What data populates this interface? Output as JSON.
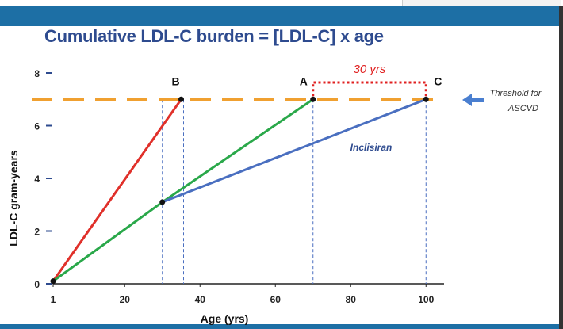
{
  "title": "Cumulative LDL-C burden = [LDL-C] x age",
  "chart_data": {
    "type": "line",
    "title": "Cumulative LDL-C burden = [LDL-C] x age",
    "xlabel": "Age (yrs)",
    "ylabel": "LDL-C gram-years",
    "xlim": [
      1,
      110
    ],
    "ylim": [
      0,
      8
    ],
    "xticks": [
      "1",
      "20",
      "40",
      "60",
      "80",
      "100"
    ],
    "xtick_values": [
      1,
      20,
      40,
      60,
      80,
      100
    ],
    "yticks": [
      "0",
      "2",
      "4",
      "6",
      "8"
    ],
    "ytick_values": [
      0,
      2,
      4,
      6,
      8
    ],
    "threshold": {
      "y": 7,
      "label_line1": "Threshold for",
      "label_line2": "ASCVD",
      "color": "#f0a030"
    },
    "series": [
      {
        "name": "red",
        "color": "#e0302a",
        "points": [
          [
            1,
            0.1
          ],
          [
            35,
            7
          ]
        ]
      },
      {
        "name": "green",
        "color": "#2aa84a",
        "points": [
          [
            1,
            0.1
          ],
          [
            30,
            3.1
          ],
          [
            70,
            7
          ]
        ]
      },
      {
        "name": "Inclisiran",
        "color": "#4a6fc0",
        "points": [
          [
            30,
            3.1
          ],
          [
            100,
            7
          ]
        ]
      }
    ],
    "points": [
      {
        "label": "B",
        "x": 35,
        "y": 7
      },
      {
        "label": "A",
        "x": 70,
        "y": 7
      },
      {
        "label": "C",
        "x": 100,
        "y": 7
      },
      {
        "label": "",
        "x": 30,
        "y": 3.1
      },
      {
        "label": "",
        "x": 1,
        "y": 0.1
      }
    ],
    "guides_x": [
      30,
      35,
      70,
      100
    ],
    "annotations": [
      {
        "text": "30 yrs",
        "color": "#e02020",
        "x_from": 70,
        "x_to": 100
      },
      {
        "text": "Inclisiran"
      }
    ]
  }
}
